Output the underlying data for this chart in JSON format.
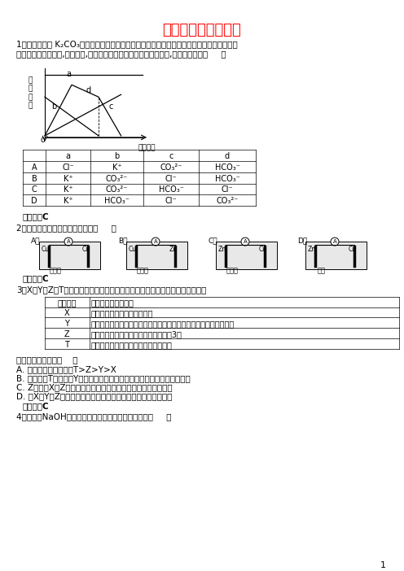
{
  "title": "化学实验的绿色追求",
  "bg_color": "#ffffff",
  "text_color": "#000000",
  "title_color": "#ff0000",
  "page_number": "1",
  "content": [
    {
      "type": "question",
      "number": "1",
      "text": "1、向一定量的 K₂CO₃溶液中缓慢滴加稀盐酸，并不断搅拌。随着盐酸的加入，溶液中离子数\n目也相应地发生变化,如图所示,四条曲线与溶液中的离子的对应关系,完全正确的是（     ）"
    },
    {
      "type": "table1",
      "headers": [
        "",
        "a",
        "b",
        "c",
        "d"
      ],
      "rows": [
        [
          "A",
          "Cl⁻",
          "K⁺",
          "CO₃²⁻",
          "HCO₃⁻"
        ],
        [
          "B",
          "K⁺",
          "CO₃²⁻",
          "Cl⁻",
          "HCO₃⁻"
        ],
        [
          "C",
          "K⁺",
          "CO₃²⁻",
          "HCO₃⁻",
          "Cl⁻"
        ],
        [
          "D",
          "K⁺",
          "HCO₃⁻",
          "Cl⁻",
          "CO₃²⁻"
        ]
      ]
    },
    {
      "type": "answer",
      "text": "【答案】C"
    },
    {
      "type": "question",
      "number": "2",
      "text": "2、下列装置能够组成原电池的是（     ）"
    },
    {
      "type": "answer",
      "text": "【答案】C"
    },
    {
      "type": "question",
      "number": "3",
      "text": "3、X、Y、Z、T四种原子序数依次递增的短周期元素，其部分性质或结构如下："
    },
    {
      "type": "table2",
      "headers": [
        "元素编号",
        "元素性质或原子结构"
      ],
      "rows": [
        [
          "X",
          "形成的简单阳离子核外无电子"
        ],
        [
          "Y",
          "元素的气态氢化物和它的最高价氧化物对应的水化物能发生化合反应"
        ],
        [
          "Z",
          "元素在周期表的族序数等于周期序数的3倍"
        ],
        [
          "T",
          "同周期元素中形成的简单离子半径最小"
        ]
      ]
    },
    {
      "type": "choices",
      "text": "下列说法正确的是（    ）\nA. 原子半径大小顺序：T>Z>Y>X\nB. 常温下，T的单质与Y的最高价氧化物对应的水化物的溶液反应生成氢气\nC. Z分别与X、Z均可形成或含有非极性键又含非极性键的化合物\nD. 由X、Y和Z三种元素构成的强电解质，对水电离均起抑制作用"
    },
    {
      "type": "answer",
      "text": "【答案】C"
    },
    {
      "type": "question",
      "number": "4",
      "text": "4、既能跟NaOH溶液反应又能跟盐酸反应的氧化物是（     ）"
    }
  ]
}
